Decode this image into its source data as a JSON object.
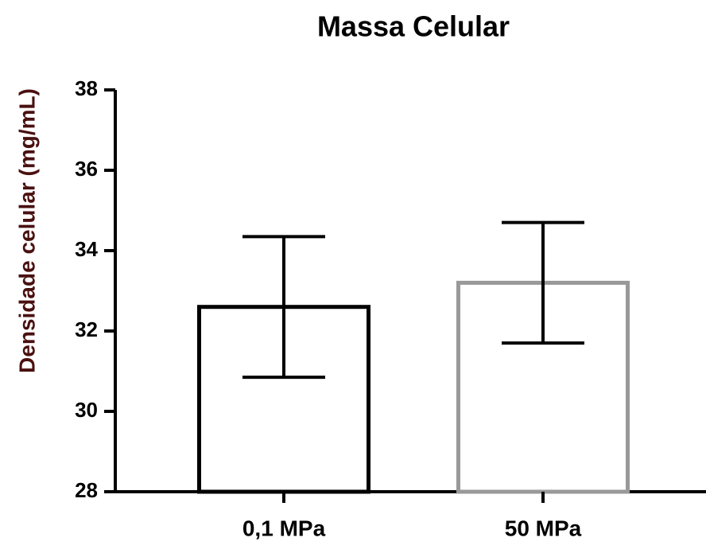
{
  "chart_data": {
    "type": "bar",
    "title": "Massa Celular",
    "y_label": "Densidade celular (mg/mL)",
    "categories": [
      "0,1 MPa",
      "50 MPa"
    ],
    "values": [
      32.6,
      33.2
    ],
    "errors": [
      1.75,
      1.5
    ],
    "colors": [
      "#000000",
      "#999999"
    ],
    "ylim": [
      28,
      38
    ],
    "yticks": [
      28,
      30,
      32,
      34,
      36,
      38
    ]
  }
}
